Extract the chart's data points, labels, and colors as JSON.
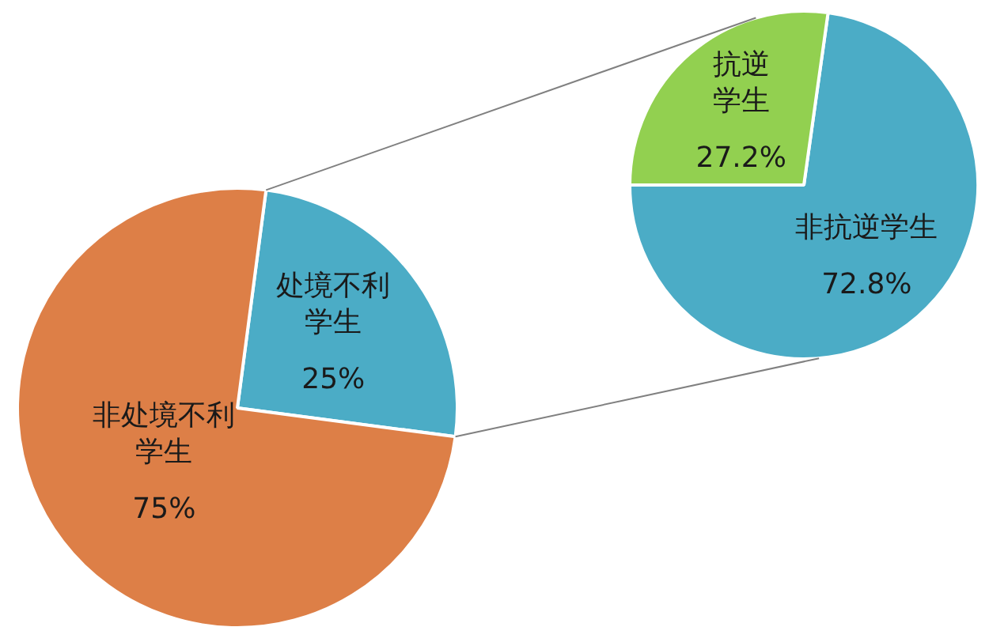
{
  "chart_data": [
    {
      "type": "pie",
      "categories": [
        "处境不利学生",
        "非处境不利学生"
      ],
      "values": [
        25,
        75
      ],
      "colors": [
        "#4bacc6",
        "#dd7f47"
      ],
      "value_labels": [
        "25%",
        "75%"
      ]
    },
    {
      "type": "pie",
      "categories": [
        "非抗逆学生",
        "抗逆学生"
      ],
      "values": [
        72.8,
        27.2
      ],
      "colors": [
        "#4bacc6",
        "#92d050"
      ],
      "value_labels": [
        "72.8%",
        "27.2%"
      ]
    }
  ]
}
